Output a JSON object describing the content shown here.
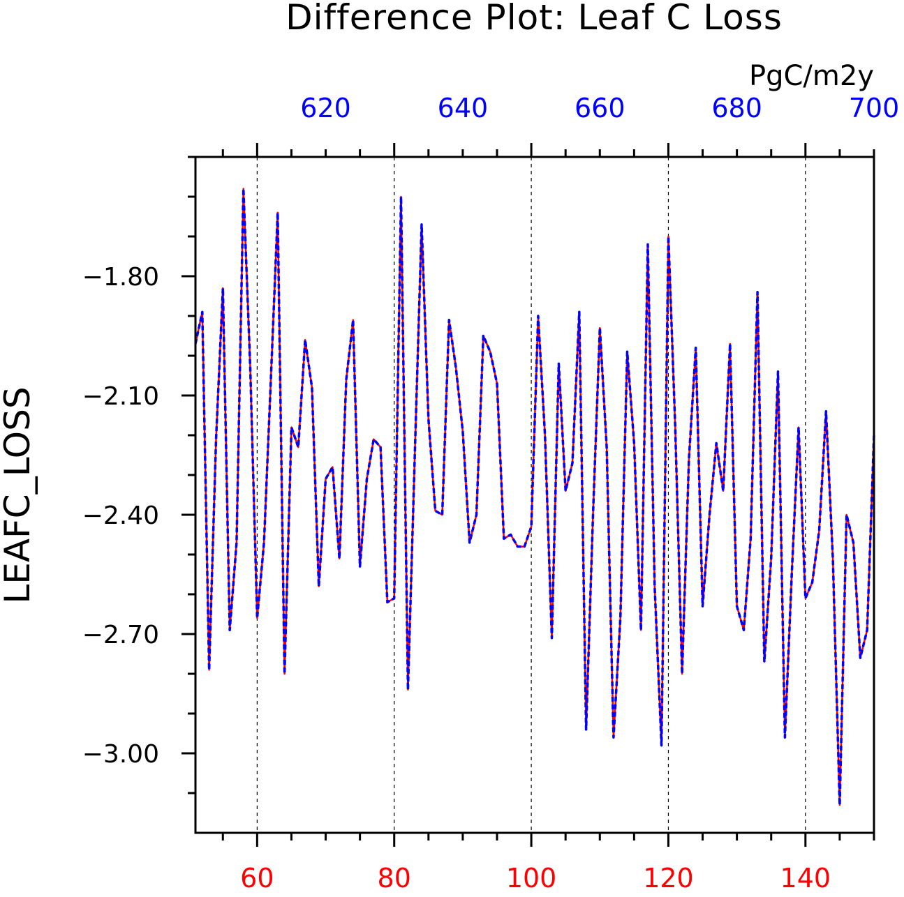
{
  "chart_data": {
    "type": "line",
    "title": "Difference Plot: Leaf C Loss",
    "units": "PgC/m2y",
    "ylabel": "LEAFC_LOSS",
    "xlabel": "",
    "xlim": [
      51,
      150
    ],
    "ylim": [
      -3.2,
      -1.5
    ],
    "grid": "vertical-dashed",
    "x_bottom_ticks": [
      60,
      80,
      100,
      120,
      140
    ],
    "x_bottom_color": "#ff0000",
    "x_top_range": [
      601,
      700
    ],
    "x_top_ticks": [
      620,
      640,
      660,
      680,
      700
    ],
    "x_top_color": "#0000ff",
    "y_ticks": [
      -1.8,
      -2.1,
      -2.4,
      -2.7,
      -3.0
    ],
    "y_tick_labels": [
      "−1.80",
      "−2.10",
      "−2.40",
      "−2.70",
      "−3.00"
    ],
    "x": [
      51,
      52,
      53,
      54,
      55,
      56,
      57,
      58,
      59,
      60,
      61,
      62,
      63,
      64,
      65,
      66,
      67,
      68,
      69,
      70,
      71,
      72,
      73,
      74,
      75,
      76,
      77,
      78,
      79,
      80,
      81,
      82,
      83,
      84,
      85,
      86,
      87,
      88,
      89,
      90,
      91,
      92,
      93,
      94,
      95,
      96,
      97,
      98,
      99,
      100,
      101,
      102,
      103,
      104,
      105,
      106,
      107,
      108,
      109,
      110,
      111,
      112,
      113,
      114,
      115,
      116,
      117,
      118,
      119,
      120,
      121,
      122,
      123,
      124,
      125,
      126,
      127,
      128,
      129,
      130,
      131,
      132,
      133,
      134,
      135,
      136,
      137,
      138,
      139,
      140,
      141,
      142,
      143,
      144,
      145,
      146,
      147,
      148,
      149,
      150
    ],
    "series": [
      {
        "color": "#ff0000",
        "style": "solid",
        "values": [
          -1.97,
          -1.89,
          -2.79,
          -2.21,
          -1.83,
          -2.69,
          -2.47,
          -1.58,
          -2.03,
          -2.66,
          -2.47,
          -2.06,
          -1.64,
          -2.8,
          -2.18,
          -2.23,
          -1.96,
          -2.08,
          -2.58,
          -2.31,
          -2.28,
          -2.51,
          -2.06,
          -1.91,
          -2.53,
          -2.31,
          -2.21,
          -2.23,
          -2.62,
          -2.61,
          -1.6,
          -2.84,
          -2.25,
          -1.67,
          -2.16,
          -2.39,
          -2.4,
          -1.91,
          -2.03,
          -2.19,
          -2.47,
          -2.4,
          -1.95,
          -1.99,
          -2.07,
          -2.46,
          -2.45,
          -2.48,
          -2.48,
          -2.43,
          -1.9,
          -2.2,
          -2.71,
          -2.02,
          -2.34,
          -2.27,
          -1.89,
          -2.94,
          -2.4,
          -1.93,
          -2.23,
          -2.96,
          -2.66,
          -1.99,
          -2.22,
          -2.69,
          -1.72,
          -2.58,
          -2.98,
          -1.7,
          -2.18,
          -2.8,
          -2.26,
          -1.98,
          -2.63,
          -2.4,
          -2.22,
          -2.34,
          -1.97,
          -2.63,
          -2.69,
          -2.46,
          -1.84,
          -2.77,
          -2.51,
          -2.04,
          -2.96,
          -2.55,
          -2.18,
          -2.61,
          -2.57,
          -2.44,
          -2.14,
          -2.51,
          -3.13,
          -2.4,
          -2.47,
          -2.76,
          -2.69,
          -2.2
        ]
      },
      {
        "color": "#0000ff",
        "style": "dashed",
        "values": [
          -1.97,
          -1.89,
          -2.79,
          -2.21,
          -1.83,
          -2.69,
          -2.47,
          -1.58,
          -2.03,
          -2.66,
          -2.47,
          -2.06,
          -1.64,
          -2.8,
          -2.18,
          -2.23,
          -1.96,
          -2.08,
          -2.58,
          -2.31,
          -2.28,
          -2.51,
          -2.06,
          -1.91,
          -2.53,
          -2.31,
          -2.21,
          -2.23,
          -2.62,
          -2.61,
          -1.6,
          -2.84,
          -2.25,
          -1.67,
          -2.16,
          -2.39,
          -2.4,
          -1.91,
          -2.03,
          -2.19,
          -2.47,
          -2.4,
          -1.95,
          -1.99,
          -2.07,
          -2.46,
          -2.45,
          -2.48,
          -2.48,
          -2.43,
          -1.9,
          -2.2,
          -2.71,
          -2.02,
          -2.34,
          -2.27,
          -1.89,
          -2.94,
          -2.4,
          -1.93,
          -2.23,
          -2.96,
          -2.66,
          -1.99,
          -2.22,
          -2.69,
          -1.72,
          -2.58,
          -2.98,
          -1.7,
          -2.18,
          -2.8,
          -2.26,
          -1.98,
          -2.63,
          -2.4,
          -2.22,
          -2.34,
          -1.97,
          -2.63,
          -2.69,
          -2.46,
          -1.84,
          -2.77,
          -2.51,
          -2.04,
          -2.96,
          -2.55,
          -2.18,
          -2.61,
          -2.57,
          -2.44,
          -2.14,
          -2.51,
          -3.13,
          -2.4,
          -2.47,
          -2.76,
          -2.69,
          -2.2
        ]
      }
    ]
  }
}
